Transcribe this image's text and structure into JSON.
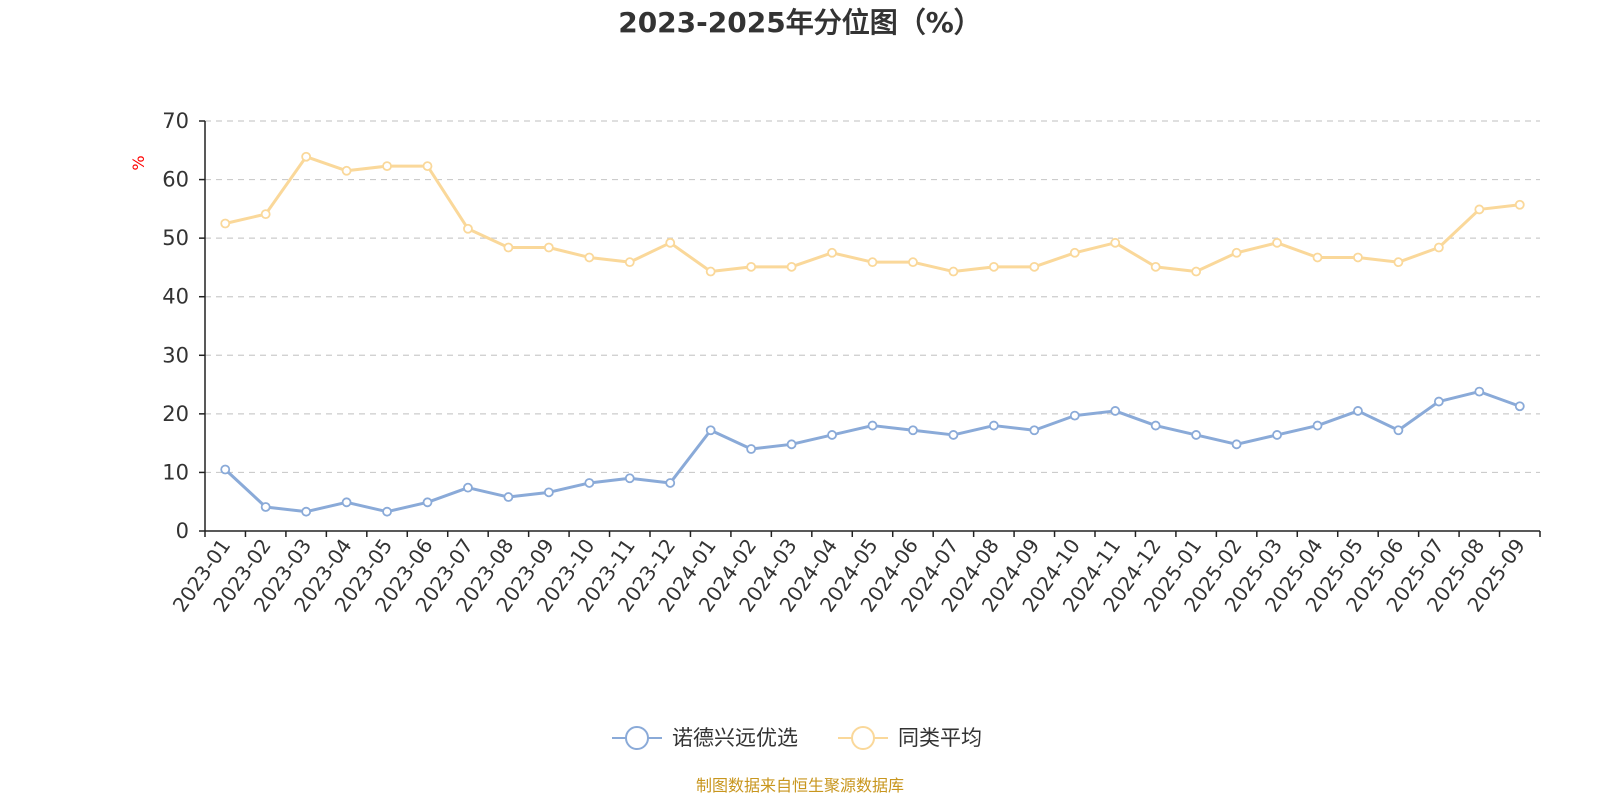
{
  "chart_data": {
    "type": "line",
    "title": "2023-2025年分位图（%）",
    "ylabel": "%",
    "xlabel": "",
    "ylim": [
      0,
      70
    ],
    "yticks": [
      0,
      10,
      20,
      30,
      40,
      50,
      60,
      70
    ],
    "grid": "horizontal dashed",
    "legend_position": "bottom-center",
    "categories": [
      "2023-01",
      "2023-02",
      "2023-03",
      "2023-04",
      "2023-05",
      "2023-06",
      "2023-07",
      "2023-08",
      "2023-09",
      "2023-10",
      "2023-11",
      "2023-12",
      "2024-01",
      "2024-02",
      "2024-03",
      "2024-04",
      "2024-05",
      "2024-06",
      "2024-07",
      "2024-08",
      "2024-09",
      "2024-10",
      "2024-11",
      "2024-12",
      "2025-01",
      "2025-02",
      "2025-03",
      "2025-04",
      "2025-05",
      "2025-06",
      "2025-07",
      "2025-08",
      "2025-09"
    ],
    "series": [
      {
        "name": "诺德兴远优选",
        "color": "#8aaad8",
        "values": [
          10.5,
          4.1,
          3.3,
          4.9,
          3.3,
          4.9,
          7.4,
          5.8,
          6.6,
          8.2,
          9.0,
          8.2,
          17.2,
          14.0,
          14.8,
          16.4,
          18.0,
          17.2,
          16.4,
          18.0,
          17.2,
          19.7,
          20.5,
          18.0,
          16.4,
          14.8,
          16.4,
          18.0,
          20.5,
          17.2,
          22.1,
          23.8,
          21.3
        ]
      },
      {
        "name": "同类平均",
        "color": "#fad89a",
        "values": [
          52.5,
          54.1,
          63.9,
          61.5,
          62.3,
          62.3,
          51.6,
          48.4,
          48.4,
          46.7,
          45.9,
          49.2,
          44.3,
          45.1,
          45.1,
          47.5,
          45.9,
          45.9,
          44.3,
          45.1,
          45.1,
          47.5,
          49.2,
          45.1,
          44.3,
          47.5,
          49.2,
          46.7,
          46.7,
          45.9,
          48.4,
          54.9,
          55.7
        ]
      }
    ]
  },
  "footer": {
    "source": "制图数据来自恒生聚源数据库"
  }
}
